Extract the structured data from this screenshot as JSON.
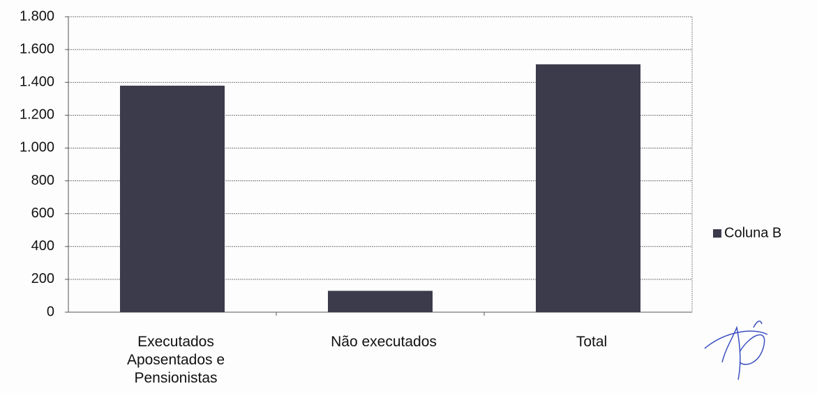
{
  "chart_data": {
    "type": "bar",
    "categories": [
      "Executados Aposentados e Pensionistas",
      "Não executados",
      "Total"
    ],
    "series": [
      {
        "name": "Coluna B",
        "color": "#3b3b4c",
        "values": [
          1380,
          130,
          1510
        ]
      }
    ],
    "ylim": [
      0,
      1800
    ],
    "yticks": [
      0,
      200,
      400,
      600,
      800,
      {
        "value": 1000,
        "label": "1.000"
      },
      {
        "value": 1200,
        "label": "1.200"
      },
      {
        "value": 1400,
        "label": "1.400"
      },
      {
        "value": 1600,
        "label": "1.600"
      },
      {
        "value": 1800,
        "label": "1.800"
      }
    ],
    "grid": true,
    "legend": "right"
  }
}
